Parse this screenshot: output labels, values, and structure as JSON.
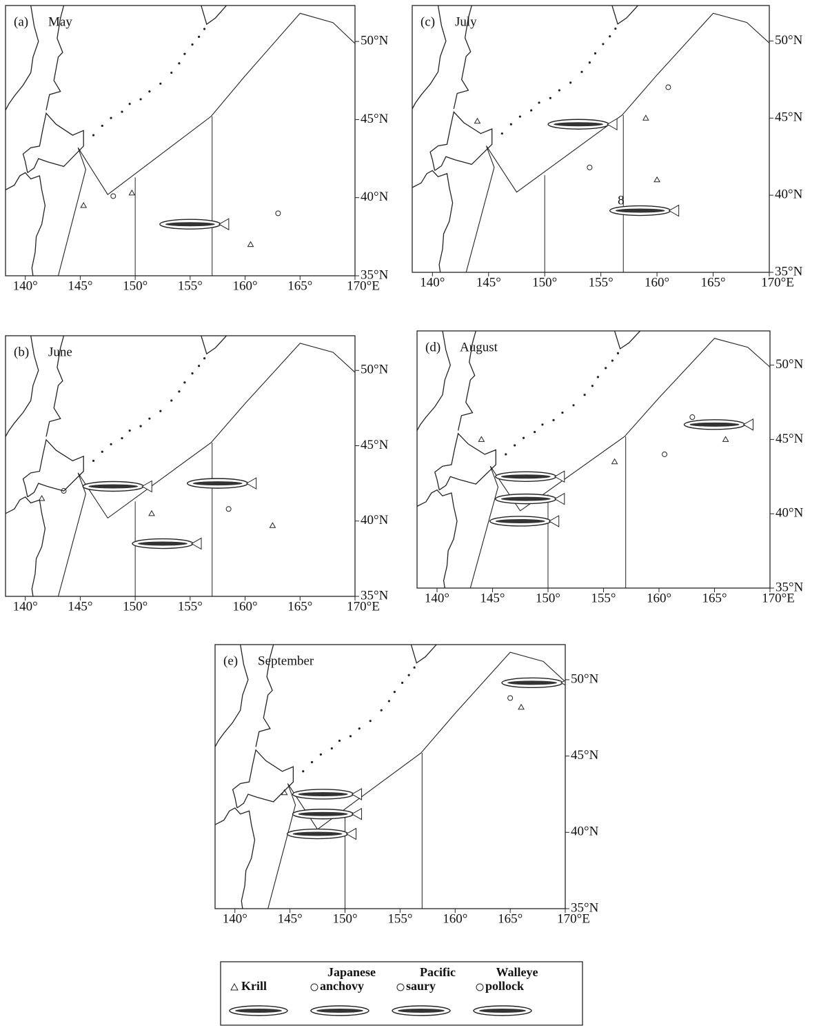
{
  "panels": [
    {
      "label": "(a)",
      "month": "May",
      "xticks": [
        "140°",
        "145°",
        "150°",
        "155°",
        "160°",
        "165°",
        "170°E"
      ],
      "yticks": [
        "50°N",
        "45°N",
        "40°N",
        "35°N"
      ]
    },
    {
      "label": "(c)",
      "month": "July",
      "note": "8",
      "xticks": [
        "140°",
        "145°",
        "150°",
        "155°",
        "160°",
        "165°",
        "170°E"
      ],
      "yticks": [
        "50°N",
        "45°N",
        "40°N",
        "35°N"
      ]
    },
    {
      "label": "(b)",
      "month": "June",
      "xticks": [
        "140°",
        "145°",
        "150°",
        "155°",
        "160°",
        "165°",
        "170°E"
      ],
      "yticks": [
        "50°N",
        "45°N",
        "40°N",
        "35°N"
      ]
    },
    {
      "label": "(d)",
      "month": "August",
      "xticks": [
        "140°",
        "145°",
        "150°",
        "155°",
        "160°",
        "165°",
        "170°E"
      ],
      "yticks": [
        "50°N",
        "45°N",
        "40°N",
        "35°N"
      ]
    },
    {
      "label": "(e)",
      "month": "September",
      "xticks": [
        "140°",
        "145°",
        "150°",
        "155°",
        "160°",
        "165°",
        "170°E"
      ],
      "yticks": [
        "50°N",
        "45°N",
        "40°N",
        "35°N"
      ]
    }
  ],
  "legend": {
    "items": [
      [
        "Krill"
      ],
      [
        "Japanese",
        "anchovy"
      ],
      [
        "Pacific",
        "saury"
      ],
      [
        "Walleye",
        "pollock"
      ]
    ]
  }
}
